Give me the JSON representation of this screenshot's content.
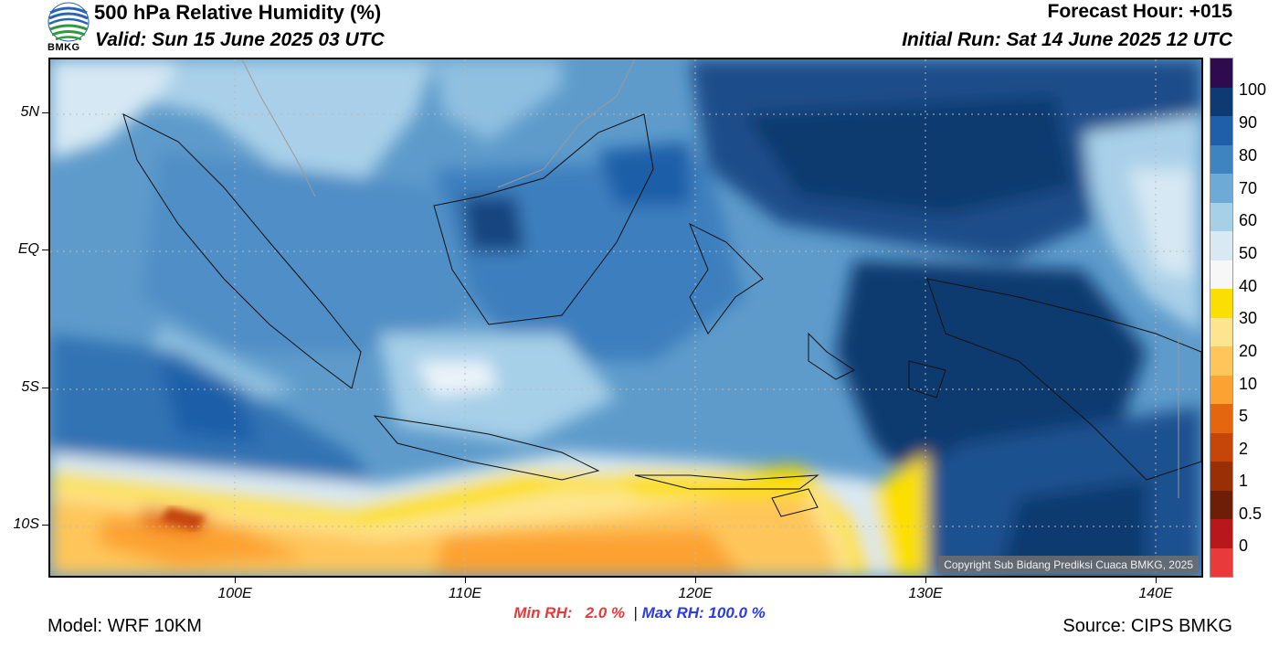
{
  "header": {
    "title": "500 hPa Relative Humidity (%)",
    "valid": "Valid: Sun 15 June 2025 03 UTC",
    "forecast_hour": "Forecast Hour: +015",
    "initial_run": "Initial Run: Sat 14 June 2025 12 UTC"
  },
  "logo": {
    "text": "BMKG",
    "icon": "bmkg-logo-icon"
  },
  "map": {
    "lat_labels": [
      "5N",
      "EQ",
      "5S",
      "10S"
    ],
    "lon_labels": [
      "100E",
      "110E",
      "120E",
      "130E",
      "140E"
    ],
    "copyright": "Copyright Sub Bidang Prediksi Cuaca BMKG, 2025"
  },
  "colorbar": {
    "labels": [
      "100",
      "90",
      "80",
      "70",
      "60",
      "50",
      "40",
      "30",
      "20",
      "10",
      "5",
      "2",
      "1",
      "0.5",
      "0"
    ],
    "colors": [
      "#2e0a4e",
      "#0d3a73",
      "#1f5ea8",
      "#3d84c0",
      "#6eaad6",
      "#a6cfe8",
      "#d8e9f3",
      "#f7f7f7",
      "#fcdf02",
      "#fde58f",
      "#fec65a",
      "#fca232",
      "#e4670f",
      "#c54608",
      "#9a2f06",
      "#6e1d06",
      "#b8181b",
      "#e8393b"
    ]
  },
  "stats": {
    "min_label": "Min RH:",
    "min_value": "2.0 %",
    "separator": "|",
    "max_label": "Max RH:",
    "max_value": "100.0 %"
  },
  "footer": {
    "model": "Model: WRF 10KM",
    "source": "Source: CIPS BMKG"
  }
}
